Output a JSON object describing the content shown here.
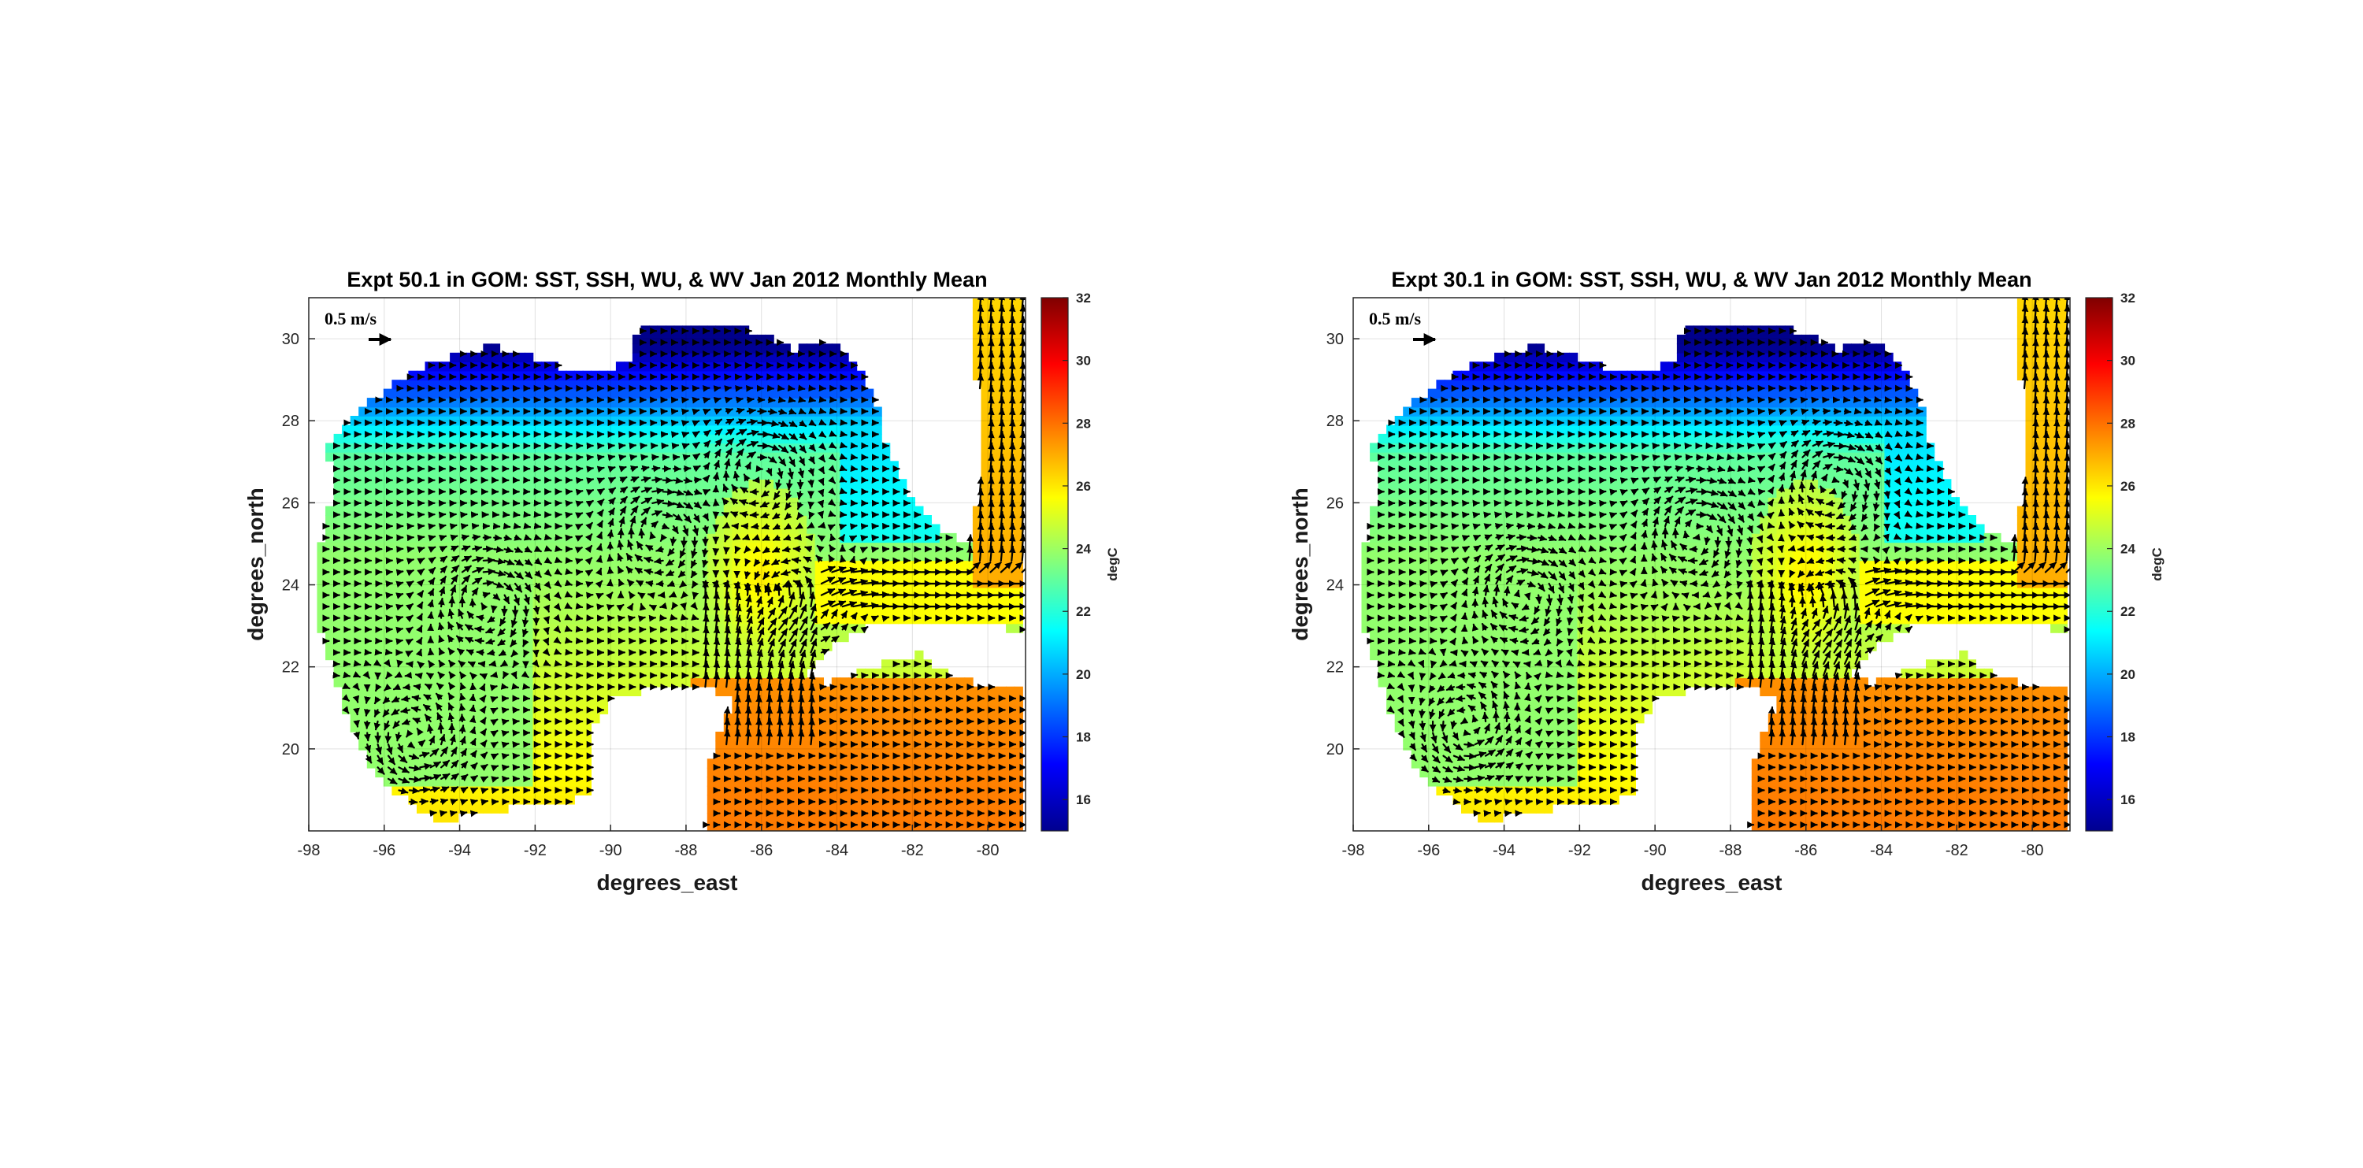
{
  "chart_data": [
    {
      "type": "heatmap",
      "title": "Expt 50.1 in GOM: SST, SSH, WU, & WV Jan 2012 Monthly Mean",
      "xlabel": "degrees_east",
      "ylabel": "degrees_north",
      "xlim": [
        -98,
        -79
      ],
      "ylim": [
        18,
        31
      ],
      "xticks": [
        -98,
        -96,
        -94,
        -92,
        -90,
        -88,
        -86,
        -84,
        -82,
        -80
      ],
      "yticks": [
        20,
        22,
        24,
        26,
        28,
        30
      ],
      "grid": true,
      "colorbar": {
        "label": "degC",
        "range": [
          15,
          32
        ],
        "ticks": [
          16,
          18,
          20,
          22,
          24,
          26,
          28,
          30,
          32
        ],
        "colormap": "jet"
      },
      "quiver_scale_label": "0.5 m/s",
      "sst_field": {
        "basin_mean": 23,
        "northern_shelf": 17,
        "loop_current_core": 26,
        "caribbean": 27.5
      },
      "eddies": [
        {
          "lon": -88.7,
          "lat": 25.3,
          "sense": "anticyclonic"
        },
        {
          "lon": -86.1,
          "lat": 26.8,
          "sense": "anticyclonic"
        },
        {
          "lon": -85.1,
          "lat": 23.6,
          "sense": "cyclonic"
        },
        {
          "lon": -95.2,
          "lat": 20.2,
          "sense": "cyclonic"
        },
        {
          "lon": -93.3,
          "lat": 23.6,
          "sense": "anticyclonic"
        }
      ]
    },
    {
      "type": "heatmap",
      "title": "Expt 30.1 in GOM: SST, SSH, WU, & WV Jan 2012 Monthly Mean",
      "xlabel": "degrees_east",
      "ylabel": "degrees_north",
      "xlim": [
        -98,
        -79
      ],
      "ylim": [
        18,
        31
      ],
      "xticks": [
        -98,
        -96,
        -94,
        -92,
        -90,
        -88,
        -86,
        -84,
        -82,
        -80
      ],
      "yticks": [
        20,
        22,
        24,
        26,
        28,
        30
      ],
      "grid": true,
      "colorbar": {
        "label": "degC",
        "range": [
          15,
          32
        ],
        "ticks": [
          16,
          18,
          20,
          22,
          24,
          26,
          28,
          30,
          32
        ],
        "colormap": "jet"
      },
      "quiver_scale_label": "0.5 m/s",
      "sst_field": {
        "basin_mean": 23,
        "northern_shelf": 17,
        "loop_current_core": 26,
        "caribbean": 27.5
      },
      "eddies": [
        {
          "lon": -88.9,
          "lat": 25.3,
          "sense": "anticyclonic"
        },
        {
          "lon": -85.3,
          "lat": 26.5,
          "sense": "anticyclonic"
        },
        {
          "lon": -85.2,
          "lat": 23.3,
          "sense": "cyclonic"
        },
        {
          "lon": -95.0,
          "lat": 20.5,
          "sense": "cyclonic"
        },
        {
          "lon": -93.5,
          "lat": 23.8,
          "sense": "anticyclonic"
        }
      ]
    }
  ]
}
